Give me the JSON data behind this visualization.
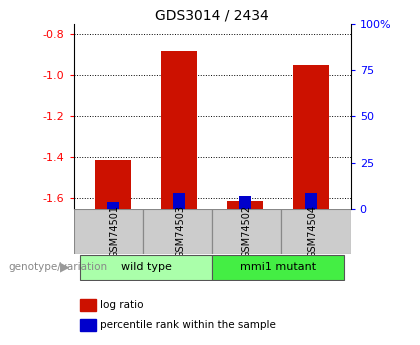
{
  "title": "GDS3014 / 2434",
  "samples": [
    "GSM74501",
    "GSM74503",
    "GSM74502",
    "GSM74504"
  ],
  "log_ratios": [
    -1.41,
    -0.88,
    -1.61,
    -0.95
  ],
  "percentile_ranks": [
    3.5,
    8.5,
    7.0,
    8.5
  ],
  "groups": [
    {
      "label": "wild type",
      "indices": [
        0,
        1
      ],
      "color": "#aaffaa"
    },
    {
      "label": "mmi1 mutant",
      "indices": [
        2,
        3
      ],
      "color": "#44ee44"
    }
  ],
  "ylim_left": [
    -1.65,
    -0.75
  ],
  "yticks_left": [
    -1.6,
    -1.4,
    -1.2,
    -1.0,
    -0.8
  ],
  "ylim_right": [
    0,
    100
  ],
  "yticks_right": [
    0,
    25,
    50,
    75,
    100
  ],
  "bar_color_log": "#cc1100",
  "bar_color_pct": "#0000cc",
  "bar_width": 0.55,
  "pct_bar_width": 0.18,
  "background_color": "#ffffff",
  "plot_bg": "#ffffff",
  "label_fontsize": 8,
  "title_fontsize": 10,
  "genotype_label": "genotype/variation",
  "legend_log": "log ratio",
  "legend_pct": "percentile rank within the sample"
}
